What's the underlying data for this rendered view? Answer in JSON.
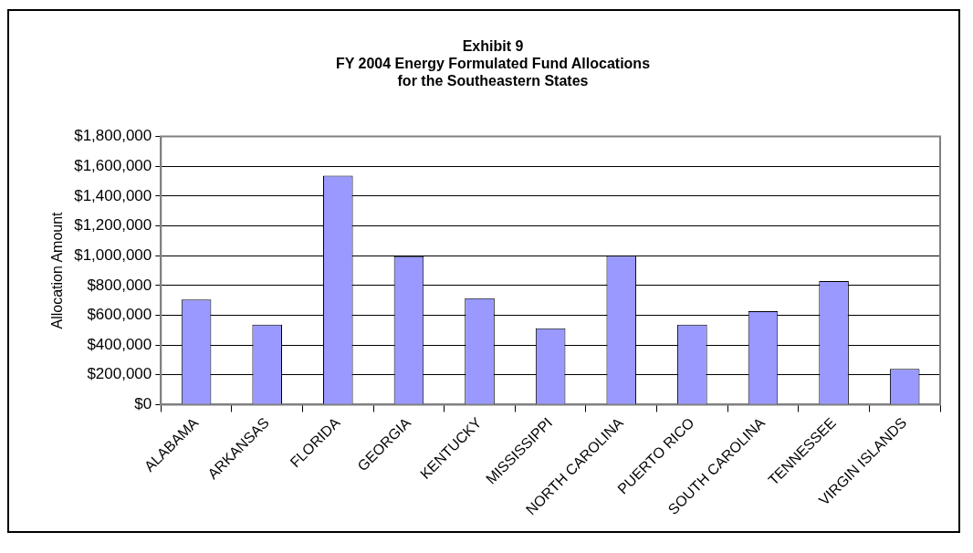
{
  "chart_data": {
    "type": "bar",
    "title": "Exhibit 9\nFY 2004 Energy Formulated Fund Allocations\nfor the Southeastern States",
    "ylabel": "Allocation Amount",
    "categories": [
      "ALABAMA",
      "ARKANSAS",
      "FLORIDA",
      "GEORGIA",
      "KENTUCKY",
      "MISSISSIPPI",
      "NORTH CAROLINA",
      "PUERTO RICO",
      "SOUTH CAROLINA",
      "TENNESSEE",
      "VIRGIN ISLANDS"
    ],
    "values": [
      705000,
      537000,
      1537000,
      997000,
      715000,
      513000,
      1000000,
      537000,
      628000,
      830000,
      240000
    ],
    "color": "#9999ff",
    "ylim": [
      0,
      1800000
    ],
    "yticks": [
      {
        "value": 0,
        "label": "$0"
      },
      {
        "value": 200000,
        "label": "$200,000"
      },
      {
        "value": 400000,
        "label": "$400,000"
      },
      {
        "value": 600000,
        "label": "$600,000"
      },
      {
        "value": 800000,
        "label": "$800,000"
      },
      {
        "value": 1000000,
        "label": "$1,000,000"
      },
      {
        "value": 1200000,
        "label": "$1,200,000"
      },
      {
        "value": 1400000,
        "label": "$1,400,000"
      },
      {
        "value": 1600000,
        "label": "$1,600,000"
      },
      {
        "value": 1800000,
        "label": "$1,800,000"
      }
    ],
    "grid": "y",
    "legend": false
  }
}
